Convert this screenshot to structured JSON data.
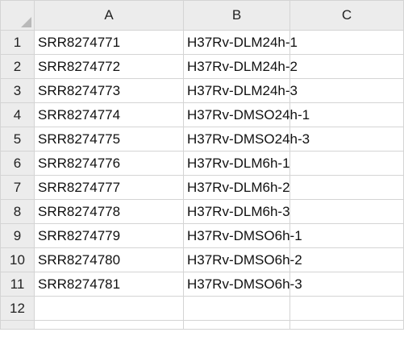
{
  "columns": [
    "A",
    "B",
    "C"
  ],
  "rows": [
    {
      "num": "1",
      "a": "SRR8274771",
      "b": "H37Rv-DLM24h-1",
      "c": ""
    },
    {
      "num": "2",
      "a": "SRR8274772",
      "b": "H37Rv-DLM24h-2",
      "c": ""
    },
    {
      "num": "3",
      "a": "SRR8274773",
      "b": "H37Rv-DLM24h-3",
      "c": ""
    },
    {
      "num": "4",
      "a": "SRR8274774",
      "b": "H37Rv-DMSO24h-1",
      "c": ""
    },
    {
      "num": "5",
      "a": "SRR8274775",
      "b": "H37Rv-DMSO24h-3",
      "c": ""
    },
    {
      "num": "6",
      "a": "SRR8274776",
      "b": "H37Rv-DLM6h-1",
      "c": ""
    },
    {
      "num": "7",
      "a": "SRR8274777",
      "b": "H37Rv-DLM6h-2",
      "c": ""
    },
    {
      "num": "8",
      "a": "SRR8274778",
      "b": "H37Rv-DLM6h-3",
      "c": ""
    },
    {
      "num": "9",
      "a": "SRR8274779",
      "b": "H37Rv-DMSO6h-1",
      "c": ""
    },
    {
      "num": "10",
      "a": "SRR8274780",
      "b": "H37Rv-DMSO6h-2",
      "c": ""
    },
    {
      "num": "11",
      "a": "SRR8274781",
      "b": "H37Rv-DMSO6h-3",
      "c": ""
    },
    {
      "num": "12",
      "a": "",
      "b": "",
      "c": ""
    },
    {
      "num": "",
      "a": "",
      "b": "",
      "c": ""
    }
  ]
}
